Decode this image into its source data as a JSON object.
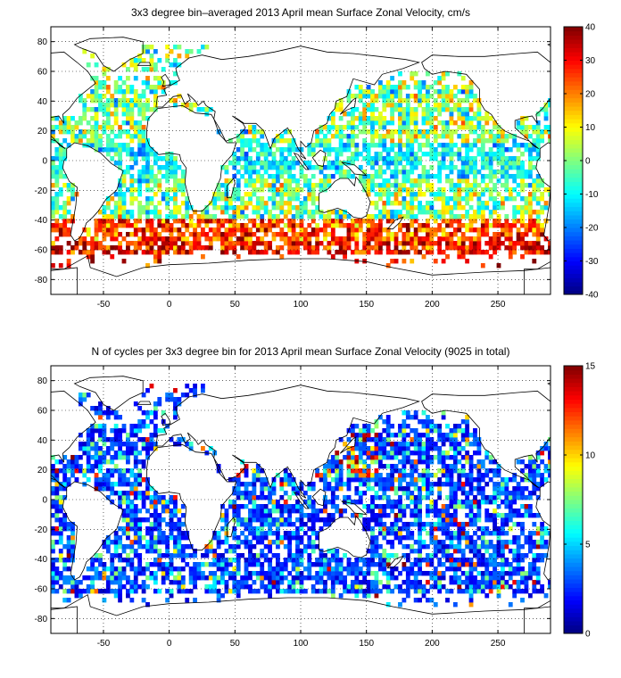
{
  "chart_data": [
    {
      "type": "heatmap",
      "title": "3x3 degree bin–averaged 2013 April mean Surface Zonal Velocity, cm/s",
      "xlabel": "",
      "ylabel": "",
      "xlim": [
        -90,
        290
      ],
      "ylim": [
        -90,
        90
      ],
      "x_ticks": [
        -50,
        0,
        50,
        100,
        150,
        200,
        250
      ],
      "y_ticks": [
        80,
        60,
        40,
        20,
        0,
        -20,
        -40,
        -60,
        -80
      ],
      "colorbar": {
        "min": -40,
        "max": 40,
        "ticks": [
          40,
          30,
          20,
          10,
          0,
          -10,
          -20,
          -30,
          -40
        ],
        "colormap": "jet"
      },
      "grid": true,
      "bin_size_deg": 3
    },
    {
      "type": "heatmap",
      "title": "N of cycles per 3x3 degree bin for 2013 April mean Surface Zonal Velocity (9025 in total)",
      "xlabel": "",
      "ylabel": "",
      "xlim": [
        -90,
        290
      ],
      "ylim": [
        -90,
        90
      ],
      "x_ticks": [
        -50,
        0,
        50,
        100,
        150,
        200,
        250
      ],
      "y_ticks": [
        80,
        60,
        40,
        20,
        0,
        -20,
        -40,
        -60,
        -80
      ],
      "colorbar": {
        "min": 0,
        "max": 15,
        "ticks": [
          15,
          10,
          5,
          0
        ],
        "colormap": "jet"
      },
      "grid": true,
      "bin_size_deg": 3,
      "total_cycles": 9025
    }
  ]
}
